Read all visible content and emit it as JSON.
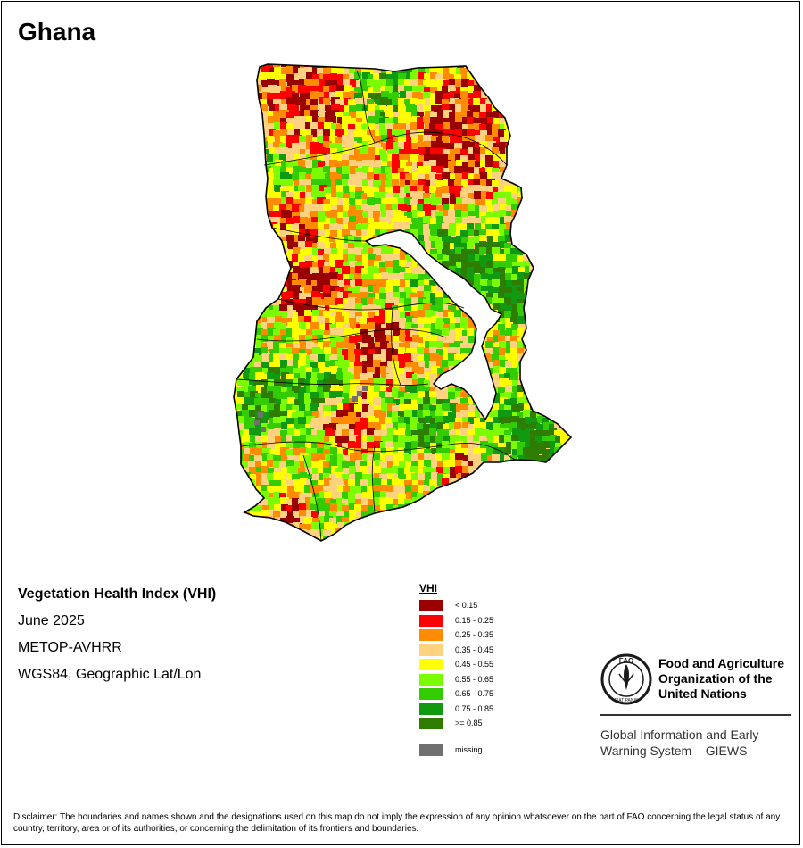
{
  "map": {
    "country": "Ghana",
    "index_title": "Vegetation Health Index (VHI)",
    "period": "June 2025",
    "sensor": "METOP-AVHRR",
    "projection": "WGS84, Geographic Lat/Lon"
  },
  "legend": {
    "title": "VHI",
    "classes": [
      {
        "label": "< 0.15",
        "color": "#990000"
      },
      {
        "label": "0.15 - 0.25",
        "color": "#ff0000"
      },
      {
        "label": "0.25 - 0.35",
        "color": "#ff8c00"
      },
      {
        "label": "0.35 - 0.45",
        "color": "#ffd27f"
      },
      {
        "label": "0.45 - 0.55",
        "color": "#ffff00"
      },
      {
        "label": "0.55 - 0.65",
        "color": "#7cfc00"
      },
      {
        "label": "0.65 - 0.75",
        "color": "#33cc00"
      },
      {
        "label": "0.75 - 0.85",
        "color": "#119911"
      },
      {
        "label": ">= 0.85",
        "color": "#2e7d00"
      }
    ],
    "missing": {
      "label": "missing",
      "color": "#707070"
    }
  },
  "organization": {
    "name_lines": [
      "Food and Agriculture",
      "Organization of the",
      "United Nations"
    ],
    "logo_text": "FAO",
    "logo_motto": "FIAT PANIS",
    "system_lines": [
      "Global Information and Early",
      "Warning System – GIEWS"
    ]
  },
  "disclaimer": "Disclaimer: The boundaries and names shown and the designations used on this map do not imply the expression of any opinion whatsoever on the part of FAO concerning the legal status of any country, territory, area or of its authorities, or concerning the delimitation of its frontiers and boundaries."
}
